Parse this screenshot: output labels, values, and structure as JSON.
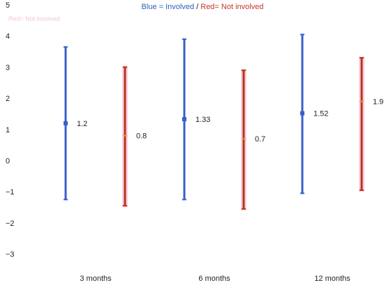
{
  "chart_data": {
    "type": "errorbar",
    "title_parts": [
      {
        "text": "Blue = Involved",
        "color": "#2e5fb8"
      },
      {
        "text": " / ",
        "color": "#222222"
      },
      {
        "text": "Red= Not involved",
        "color": "#c0392b"
      }
    ],
    "faint_label": "Red= Not involved",
    "categories": [
      "3 months",
      "6 months",
      "12 months"
    ],
    "y_ticks": [
      "5",
      "4",
      "3",
      "2",
      "1",
      "0",
      "−1",
      "−2",
      "−3"
    ],
    "ylim": [
      -3.5,
      5
    ],
    "series": [
      {
        "name": "Involved",
        "color": "#3a5fc8",
        "points": [
          {
            "mean": 1.2,
            "low": -1.25,
            "high": 3.65,
            "label": "1.2"
          },
          {
            "mean": 1.33,
            "low": -1.25,
            "high": 3.9,
            "label": "1.33"
          },
          {
            "mean": 1.52,
            "low": -1.05,
            "high": 4.05,
            "label": "1.52"
          }
        ]
      },
      {
        "name": "Not involved",
        "color": "#b8331f",
        "points": [
          {
            "mean": 0.8,
            "low": -1.45,
            "high": 3.0,
            "label": "0.8"
          },
          {
            "mean": 0.7,
            "low": -1.55,
            "high": 2.9,
            "label": "0.7"
          },
          {
            "mean": 1.9,
            "low": -0.95,
            "high": 3.3,
            "label": "1.9"
          }
        ]
      }
    ]
  }
}
